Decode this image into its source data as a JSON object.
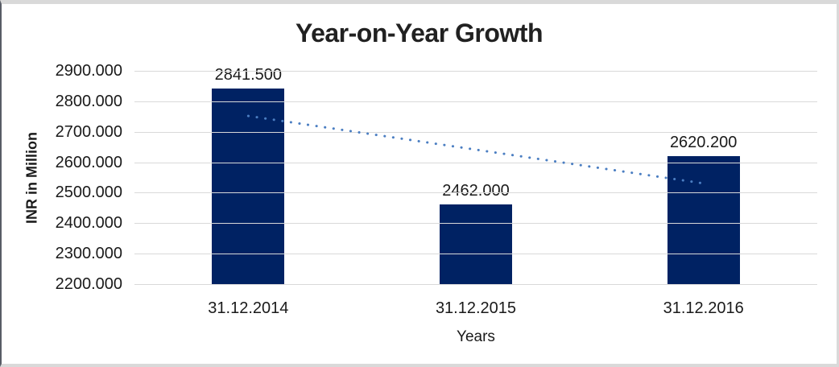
{
  "frame": {
    "background": "#ffffff",
    "outer_border_color": "#d9d9d9",
    "left_edge_color": "#585c66",
    "text_color": "#1a1a1a",
    "title_color": "#212121"
  },
  "chart_data": {
    "type": "bar",
    "title": "Year-on-Year Growth",
    "categories": [
      "31.12.2014",
      "31.12.2015",
      "31.12.2016"
    ],
    "values": [
      2841.5,
      2462.0,
      2620.2
    ],
    "value_labels": [
      "2841.500",
      "2462.000",
      "2620.200"
    ],
    "xlabel": "Years",
    "ylabel": "INR in Million",
    "ylim": [
      2200,
      2900
    ],
    "ytick_step": 100,
    "ytick_labels": [
      "2200.000",
      "2300.000",
      "2400.000",
      "2500.000",
      "2600.000",
      "2700.000",
      "2800.000",
      "2900.000"
    ],
    "grid": "horizontal",
    "legend": "none",
    "bar_color": "#002263",
    "gridline_color": "#d9d9d9",
    "trendline": {
      "type": "linear",
      "style": "dotted",
      "color": "#4b7ec2"
    }
  }
}
